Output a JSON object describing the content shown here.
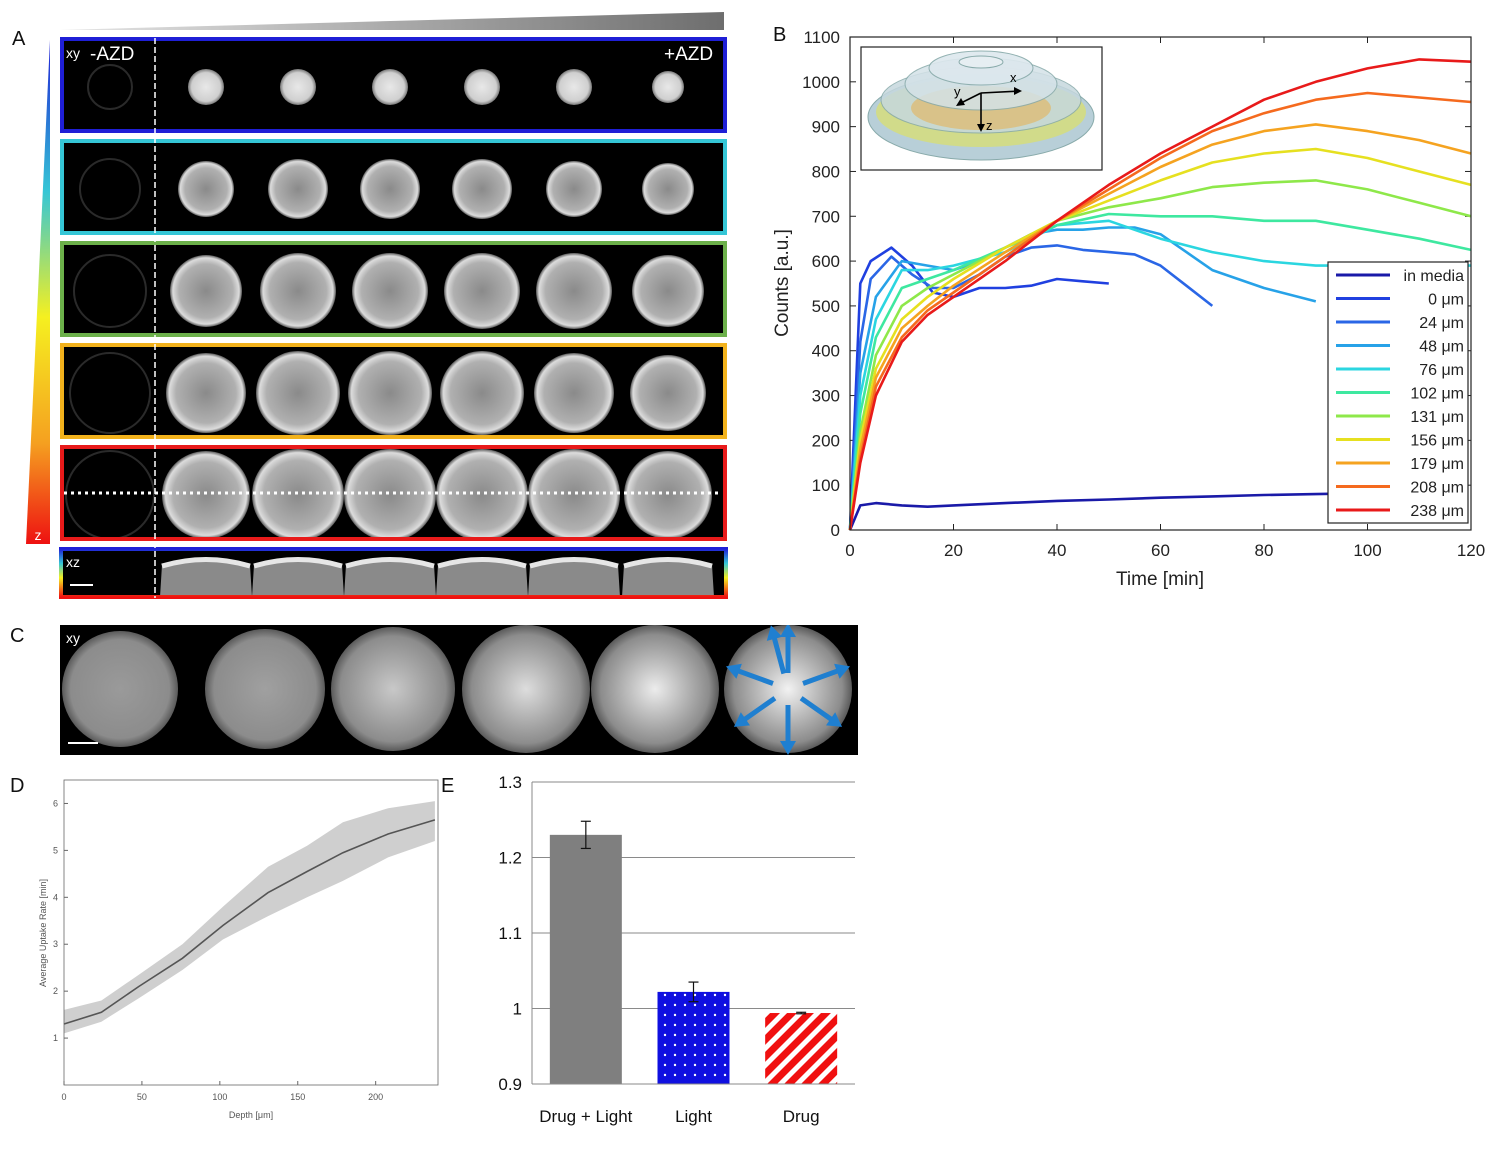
{
  "panels": {
    "A": {
      "label": "A",
      "xy_label": "xy",
      "minus_label": "-AZD",
      "plus_label": "+AZD",
      "xz_label": "xz",
      "z_label": "z",
      "row_colors": [
        "#1f1fd6",
        "#35c6d6",
        "#6cb04a",
        "#f2b21c",
        "#e81a1a"
      ]
    },
    "B": {
      "label": "B"
    },
    "C": {
      "label": "C",
      "xy_label": "xy"
    },
    "D": {
      "label": "D"
    },
    "E": {
      "label": "E"
    }
  },
  "chart_data": [
    {
      "id": "B",
      "type": "line",
      "xlabel": "Time [min]",
      "ylabel": "Counts [a.u.]",
      "xlim": [
        0,
        120
      ],
      "ylim": [
        0,
        1100
      ],
      "xticks": [
        0,
        20,
        40,
        60,
        80,
        100,
        120
      ],
      "yticks": [
        0,
        100,
        200,
        300,
        400,
        500,
        600,
        700,
        800,
        900,
        1000,
        1100
      ],
      "legend_position": "bottom-right",
      "series": [
        {
          "name": "in media",
          "color": "#1a1aa8",
          "x": [
            0,
            2,
            5,
            10,
            15,
            20,
            30,
            40,
            50,
            60,
            70,
            80,
            90,
            100
          ],
          "y": [
            0,
            55,
            60,
            55,
            52,
            55,
            60,
            65,
            68,
            72,
            75,
            78,
            80,
            82
          ]
        },
        {
          "name": "0 μm",
          "color": "#2040e0",
          "x": [
            0,
            2,
            4,
            8,
            12,
            16,
            20,
            25,
            30,
            35,
            40,
            45,
            50
          ],
          "y": [
            0,
            550,
            600,
            630,
            590,
            530,
            520,
            540,
            540,
            545,
            560,
            555,
            550
          ]
        },
        {
          "name": "24 μm",
          "color": "#2a66e6",
          "x": [
            0,
            2,
            4,
            8,
            12,
            16,
            20,
            25,
            30,
            35,
            40,
            45,
            50,
            55,
            60,
            65,
            70
          ],
          "y": [
            0,
            420,
            560,
            610,
            570,
            540,
            540,
            570,
            610,
            630,
            635,
            625,
            620,
            615,
            590,
            545,
            500
          ]
        },
        {
          "name": "48 μm",
          "color": "#27a2e8",
          "x": [
            0,
            2,
            5,
            10,
            15,
            20,
            25,
            30,
            35,
            40,
            45,
            50,
            55,
            60,
            65,
            70,
            80,
            90
          ],
          "y": [
            0,
            350,
            520,
            600,
            590,
            580,
            600,
            630,
            660,
            670,
            670,
            675,
            675,
            660,
            620,
            580,
            540,
            510
          ]
        },
        {
          "name": "76 μm",
          "color": "#2bd6e0",
          "x": [
            0,
            2,
            5,
            10,
            15,
            20,
            30,
            40,
            50,
            60,
            70,
            80,
            90,
            100,
            110,
            120
          ],
          "y": [
            0,
            300,
            470,
            580,
            580,
            590,
            620,
            680,
            690,
            650,
            620,
            600,
            590,
            590,
            590,
            590
          ]
        },
        {
          "name": "102 μm",
          "color": "#3ee8a0",
          "x": [
            0,
            2,
            5,
            10,
            15,
            20,
            30,
            40,
            50,
            60,
            70,
            80,
            90,
            100,
            110,
            120
          ],
          "y": [
            0,
            260,
            430,
            540,
            560,
            580,
            630,
            680,
            705,
            700,
            700,
            690,
            690,
            670,
            650,
            625
          ]
        },
        {
          "name": "131 μm",
          "color": "#8ee84a",
          "x": [
            0,
            2,
            5,
            10,
            15,
            20,
            30,
            40,
            50,
            60,
            70,
            80,
            90,
            100,
            110,
            120
          ],
          "y": [
            0,
            220,
            390,
            500,
            540,
            570,
            630,
            690,
            720,
            740,
            765,
            775,
            780,
            760,
            730,
            700
          ]
        },
        {
          "name": "156 μm",
          "color": "#e6e020",
          "x": [
            0,
            2,
            5,
            10,
            15,
            20,
            30,
            40,
            50,
            60,
            70,
            80,
            90,
            100,
            110,
            120
          ],
          "y": [
            0,
            200,
            360,
            470,
            520,
            560,
            630,
            690,
            735,
            780,
            820,
            840,
            850,
            830,
            800,
            770
          ]
        },
        {
          "name": "179 μm",
          "color": "#f5a320",
          "x": [
            0,
            2,
            5,
            10,
            15,
            20,
            30,
            40,
            50,
            60,
            70,
            80,
            90,
            100,
            110,
            120
          ],
          "y": [
            0,
            180,
            340,
            450,
            500,
            545,
            620,
            690,
            750,
            810,
            860,
            890,
            905,
            890,
            870,
            840
          ]
        },
        {
          "name": "208 μm",
          "color": "#f56a1e",
          "x": [
            0,
            2,
            5,
            10,
            15,
            20,
            30,
            40,
            50,
            60,
            70,
            80,
            90,
            100,
            110,
            120
          ],
          "y": [
            0,
            160,
            320,
            430,
            490,
            530,
            610,
            690,
            760,
            830,
            890,
            930,
            960,
            975,
            965,
            955
          ]
        },
        {
          "name": "238 μm",
          "color": "#e81a1a",
          "x": [
            0,
            2,
            5,
            10,
            15,
            20,
            30,
            40,
            50,
            60,
            70,
            80,
            90,
            100,
            110,
            120
          ],
          "y": [
            0,
            150,
            300,
            420,
            480,
            520,
            600,
            690,
            770,
            840,
            900,
            960,
            1000,
            1030,
            1050,
            1045
          ]
        }
      ]
    },
    {
      "id": "D",
      "type": "line",
      "xlabel": "Depth [μm]",
      "ylabel": "Average Uptake Rate [min]",
      "xlim": [
        0,
        240
      ],
      "ylim": [
        0,
        6.5
      ],
      "xticks": [
        0,
        50,
        100,
        150,
        200
      ],
      "yticks": [
        1,
        2,
        3,
        4,
        5,
        6
      ],
      "series": [
        {
          "x": [
            0,
            24,
            48,
            76,
            102,
            131,
            156,
            179,
            208,
            238
          ],
          "y": [
            1.3,
            1.55,
            2.1,
            2.7,
            3.4,
            4.1,
            4.55,
            4.95,
            5.35,
            5.65
          ],
          "lower": [
            1.1,
            1.35,
            1.85,
            2.45,
            3.1,
            3.6,
            4.0,
            4.35,
            4.85,
            5.2
          ],
          "upper": [
            1.6,
            1.8,
            2.35,
            3.0,
            3.8,
            4.65,
            5.1,
            5.6,
            5.9,
            6.05
          ]
        }
      ]
    },
    {
      "id": "E",
      "type": "bar",
      "categories": [
        "Drug + Light",
        "Light",
        "Drug"
      ],
      "values": [
        1.23,
        1.022,
        0.994
      ],
      "errors": [
        0.018,
        0.013,
        0.001
      ],
      "colors": [
        "#7f7f7f",
        "#1010e0",
        "#f01010"
      ],
      "patterns": [
        "solid",
        "dots",
        "stripes"
      ],
      "ylim": [
        0.9,
        1.3
      ],
      "yticks": [
        "0.9",
        "1",
        "1.1",
        "1.2",
        "1.3"
      ],
      "grid": true
    }
  ]
}
